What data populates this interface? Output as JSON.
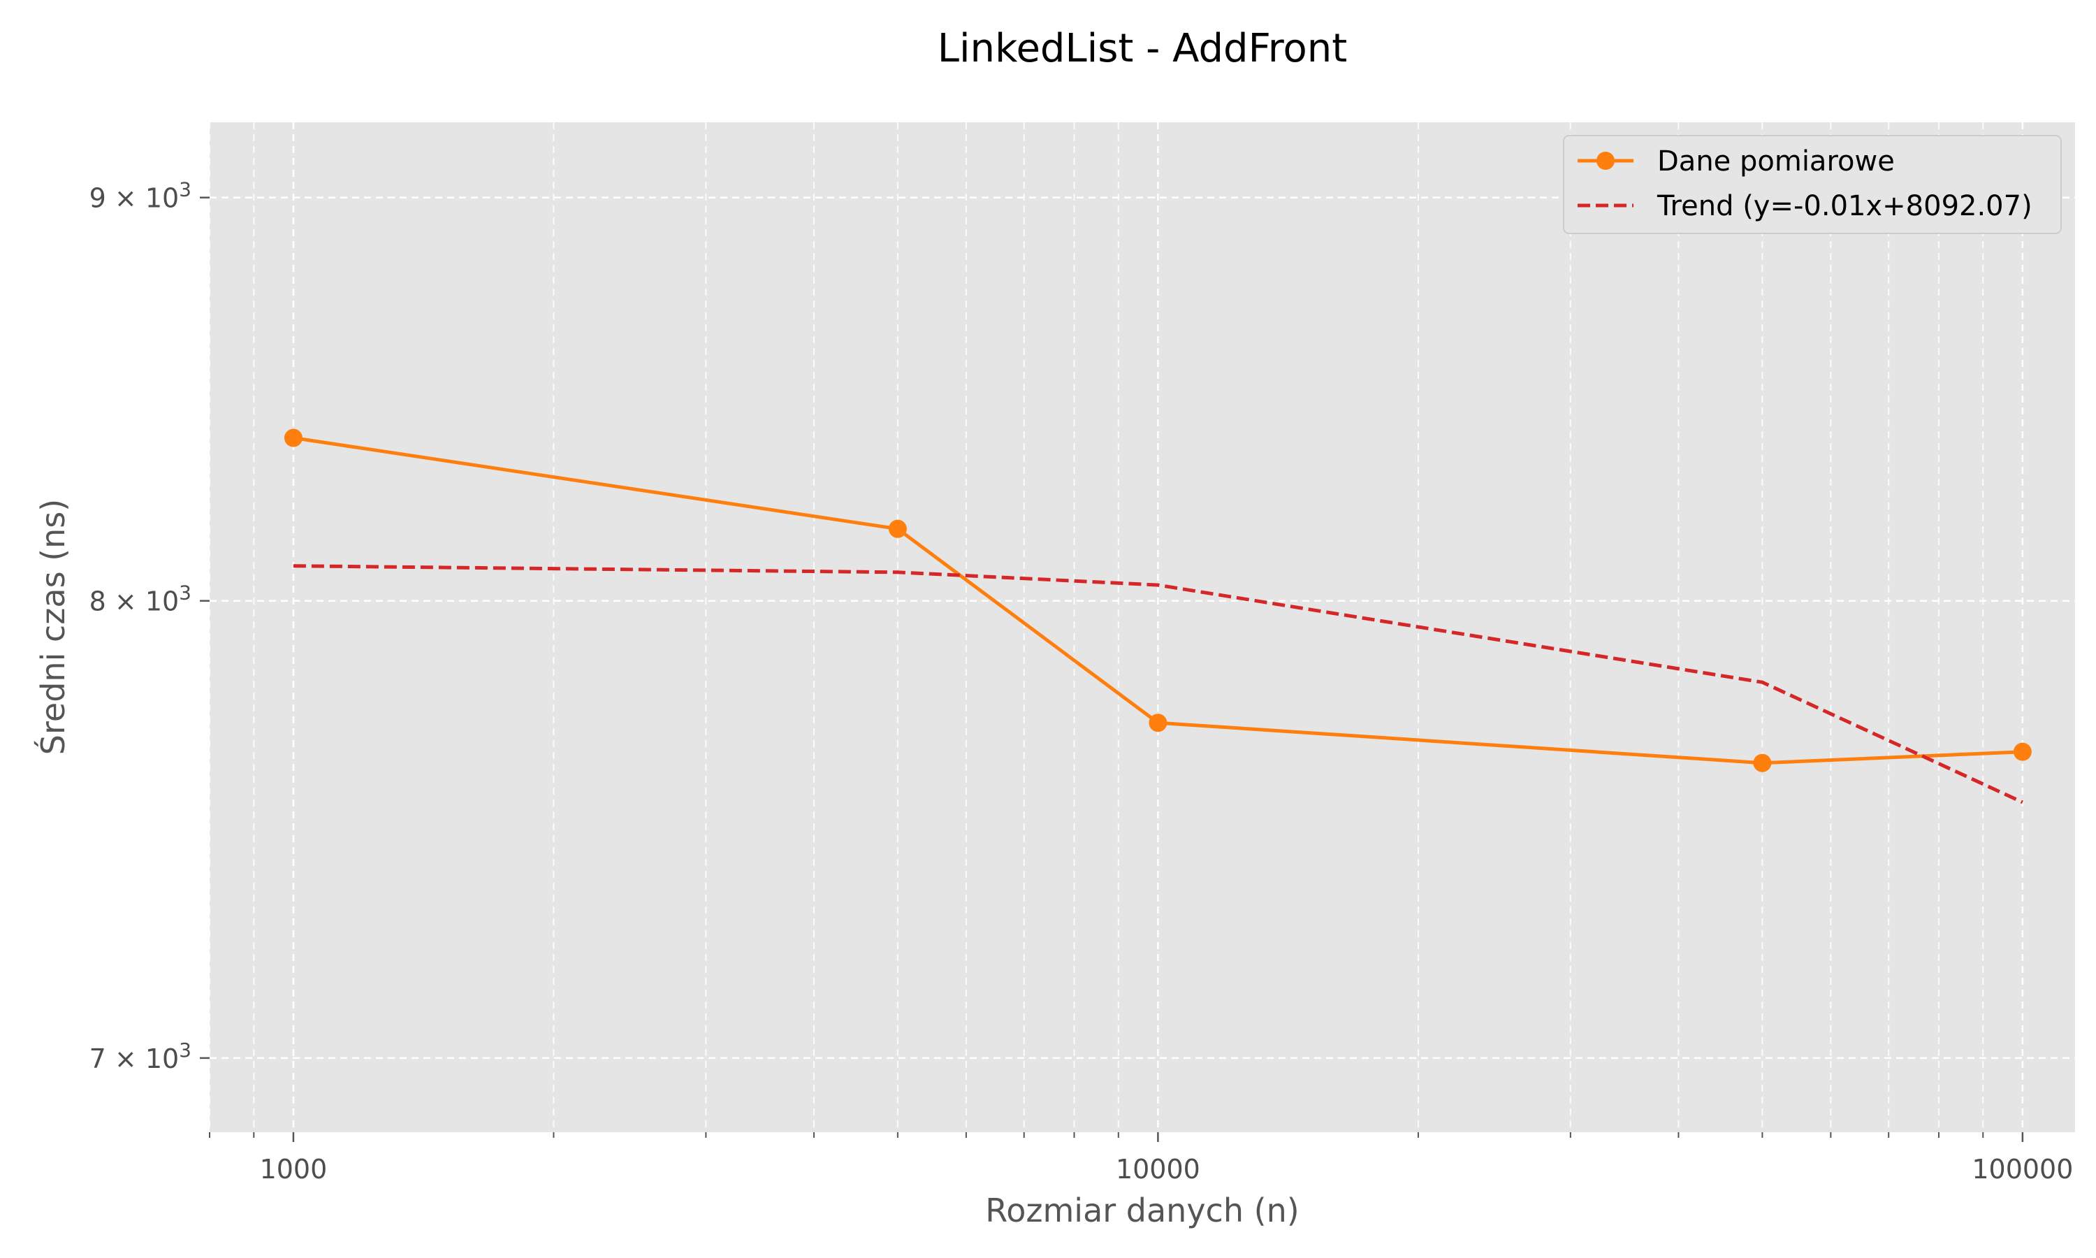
{
  "chart_data": {
    "type": "line",
    "title": "LinkedList - AddFront",
    "xlabel": "Rozmiar danych (n)",
    "ylabel": "Średni czas (ns)",
    "x_scale": "log",
    "y_scale": "log",
    "xlim": [
      800,
      115000
    ],
    "ylim": [
      6850,
      9200
    ],
    "x_ticks": [
      {
        "value": 1000,
        "label": "1000"
      },
      {
        "value": 10000,
        "label": "10000"
      },
      {
        "value": 100000,
        "label": "100000"
      }
    ],
    "y_ticks": [
      {
        "value": 7000,
        "mantissa": "7",
        "base": "10",
        "exp": "3"
      },
      {
        "value": 8000,
        "mantissa": "8",
        "base": "10",
        "exp": "3"
      },
      {
        "value": 9000,
        "mantissa": "9",
        "base": "10",
        "exp": "3"
      }
    ],
    "grid": true,
    "legend_position": "top-right",
    "series": [
      {
        "name": "Dane pomiarowe",
        "style": "solid-with-markers",
        "color": "#ff7f0e",
        "x": [
          1000,
          5000,
          10000,
          50000,
          100000
        ],
        "y": [
          8390,
          8170,
          7720,
          7630,
          7655
        ]
      },
      {
        "name": "Trend (y=-0.01x+8092.07)",
        "style": "dashed",
        "color": "#d62728",
        "x": [
          1000,
          5000,
          10000,
          50000,
          100000
        ],
        "y": [
          8082,
          8067,
          8037,
          7812,
          7543
        ]
      }
    ]
  },
  "colors": {
    "plot_background": "#e5e5e5",
    "grid": "#ffffff"
  }
}
